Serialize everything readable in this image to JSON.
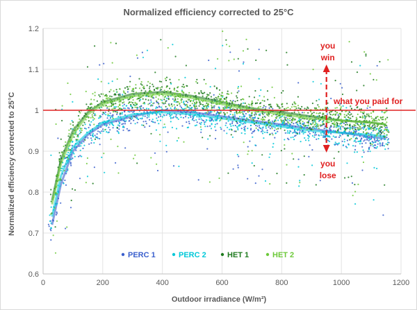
{
  "chart_data": {
    "type": "scatter",
    "title": "Normalized efficiency corrected to 25°C",
    "xlabel": "Outdoor irradiance (W/m²)",
    "ylabel": "Normalized efficiency corrected to 25°C",
    "xlim": [
      0,
      1200
    ],
    "ylim": [
      0.6,
      1.2
    ],
    "x_ticks": [
      "0",
      "200",
      "400",
      "600",
      "800",
      "1000",
      "1200"
    ],
    "y_ticks": [
      "0.6",
      "0.7",
      "0.8",
      "0.9",
      "1",
      "1.1",
      "1.2"
    ],
    "grid": true,
    "legend_position": "bottom-left inside",
    "series": [
      {
        "name": "PERC 1",
        "color": "#3a5fcd",
        "trend": [
          [
            30,
            0.72
          ],
          [
            60,
            0.82
          ],
          [
            100,
            0.9
          ],
          [
            150,
            0.94
          ],
          [
            200,
            0.965
          ],
          [
            300,
            0.985
          ],
          [
            400,
            1.0
          ],
          [
            500,
            0.995
          ],
          [
            600,
            0.985
          ],
          [
            700,
            0.975
          ],
          [
            800,
            0.965
          ],
          [
            900,
            0.955
          ],
          [
            1000,
            0.945
          ],
          [
            1100,
            0.935
          ],
          [
            1150,
            0.93
          ]
        ]
      },
      {
        "name": "PERC 2",
        "color": "#00c8d8",
        "trend": [
          [
            30,
            0.74
          ],
          [
            60,
            0.84
          ],
          [
            100,
            0.91
          ],
          [
            150,
            0.945
          ],
          [
            200,
            0.97
          ],
          [
            300,
            0.99
          ],
          [
            400,
            0.995
          ],
          [
            500,
            0.99
          ],
          [
            600,
            0.98
          ],
          [
            700,
            0.97
          ],
          [
            800,
            0.96
          ],
          [
            900,
            0.95
          ],
          [
            1000,
            0.945
          ],
          [
            1100,
            0.94
          ],
          [
            1150,
            0.935
          ]
        ]
      },
      {
        "name": "HET 1",
        "color": "#1e7a1e",
        "trend": [
          [
            30,
            0.78
          ],
          [
            60,
            0.88
          ],
          [
            100,
            0.95
          ],
          [
            150,
            0.995
          ],
          [
            200,
            1.02
          ],
          [
            300,
            1.04
          ],
          [
            400,
            1.045
          ],
          [
            500,
            1.035
          ],
          [
            600,
            1.02
          ],
          [
            700,
            1.005
          ],
          [
            800,
            0.995
          ],
          [
            900,
            0.985
          ],
          [
            1000,
            0.975
          ],
          [
            1100,
            0.97
          ],
          [
            1150,
            0.965
          ]
        ]
      },
      {
        "name": "HET 2",
        "color": "#6dc93a",
        "trend": [
          [
            30,
            0.77
          ],
          [
            60,
            0.87
          ],
          [
            100,
            0.94
          ],
          [
            150,
            0.99
          ],
          [
            200,
            1.015
          ],
          [
            300,
            1.035
          ],
          [
            400,
            1.04
          ],
          [
            500,
            1.03
          ],
          [
            600,
            1.015
          ],
          [
            700,
            1.0
          ],
          [
            800,
            0.99
          ],
          [
            900,
            0.98
          ],
          [
            1000,
            0.975
          ],
          [
            1100,
            0.97
          ],
          [
            1150,
            0.965
          ]
        ]
      }
    ],
    "reference_line": {
      "y": 1.0,
      "label": "what you paid for",
      "color": "#e02020"
    },
    "annotations": [
      {
        "text": "you",
        "color": "#e02020"
      },
      {
        "text": "win",
        "color": "#e02020"
      },
      {
        "text": "you",
        "color": "#e02020"
      },
      {
        "text": "lose",
        "color": "#e02020"
      }
    ],
    "arrow_at_x": 950
  }
}
